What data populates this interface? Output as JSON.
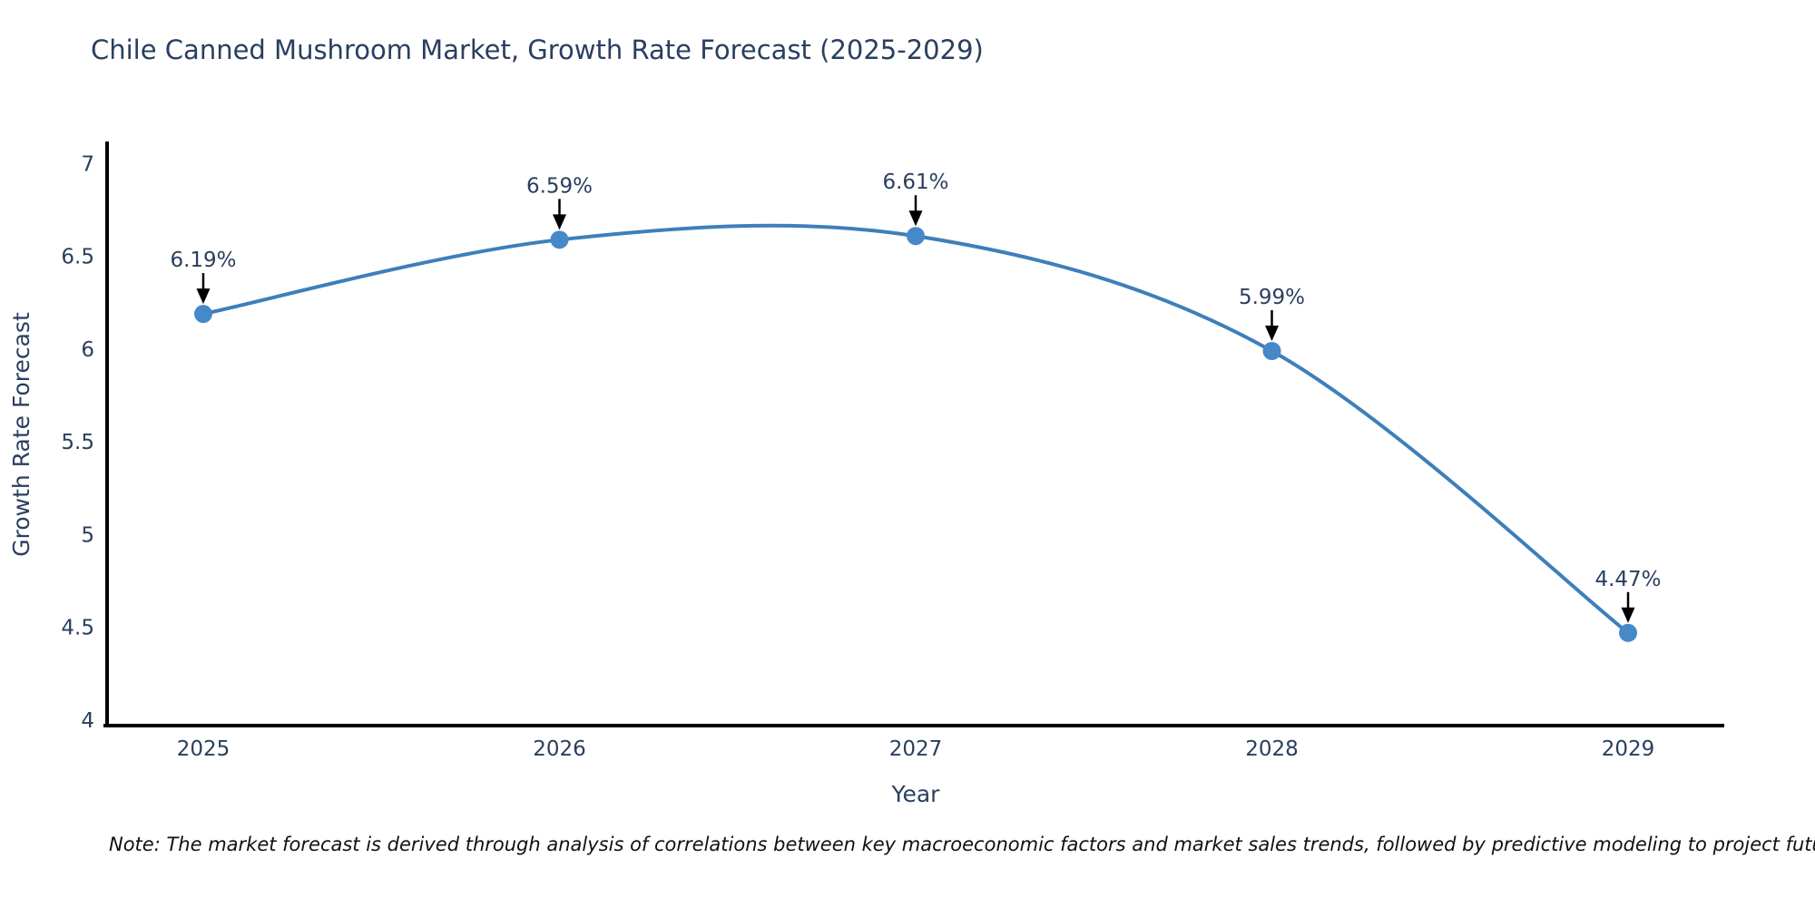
{
  "title": "Chile Canned Mushroom Market, Growth Rate Forecast (2025-2029)",
  "note": "Note: The market forecast is derived through analysis of correlations between key macroeconomic factors and market sales trends, followed by predictive modeling to project future sales",
  "chart_data": {
    "type": "line",
    "title": "Chile Canned Mushroom Market, Growth Rate Forecast (2025-2029)",
    "x": [
      2025,
      2026,
      2027,
      2028,
      2029
    ],
    "values": [
      6.19,
      6.59,
      6.61,
      5.99,
      4.47
    ],
    "point_labels": [
      "6.19%",
      "6.59%",
      "6.61%",
      "5.99%",
      "4.47%"
    ],
    "xlabel": "Year",
    "ylabel": "Growth Rate Forecast",
    "xticks": [
      "2025",
      "2026",
      "2027",
      "2028",
      "2029"
    ],
    "xtick_values": [
      2025,
      2026,
      2027,
      2028,
      2029
    ],
    "yticks": [
      "4",
      "4.5",
      "5",
      "5.5",
      "6",
      "6.5",
      "7"
    ],
    "ytick_values": [
      4,
      4.5,
      5,
      5.5,
      6,
      6.5,
      7
    ],
    "xlim": [
      2024.73,
      2029.27
    ],
    "ylim": [
      3.97,
      7.11
    ],
    "grid": false,
    "legend": "none",
    "line_shape": "spline",
    "colors": {
      "line": "#3e7fba",
      "marker": "#4589c8",
      "axis": "#000000",
      "text": "#2a3f5f",
      "annotation_arrow": "#000000"
    }
  }
}
